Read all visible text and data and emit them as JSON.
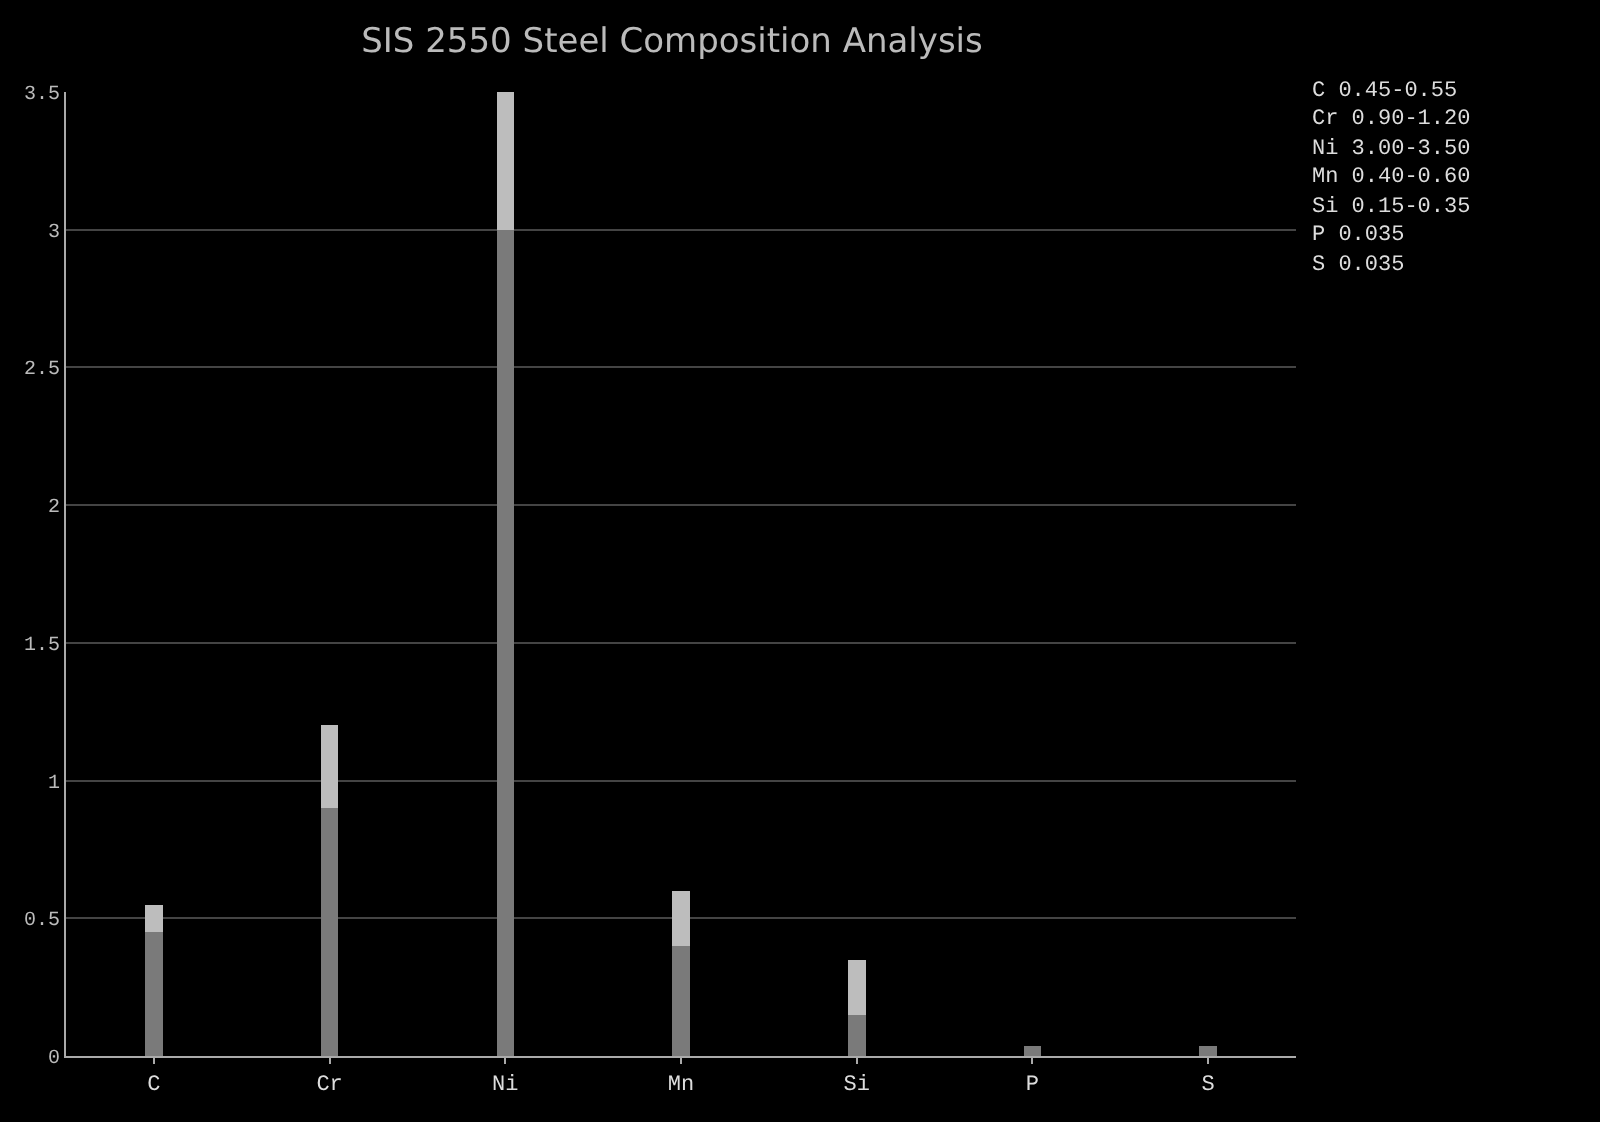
{
  "chart_data": {
    "type": "bar",
    "title": "SIS 2550 Steel Composition Analysis",
    "categories": [
      "C",
      "Cr",
      "Ni",
      "Mn",
      "Si",
      "P",
      "S"
    ],
    "stacked": true,
    "series": [
      {
        "color": "#7a7a7a",
        "values": [
          0.45,
          0.9,
          3.0,
          0.4,
          0.15,
          0.035,
          0.035
        ]
      },
      {
        "color": "#bdbdbd",
        "values": [
          0.1,
          0.3,
          0.5,
          0.2,
          0.2,
          null,
          null
        ]
      }
    ],
    "ylim": [
      0,
      3.5
    ],
    "yticks": [
      0,
      0.5,
      1,
      1.5,
      2,
      2.5,
      3,
      3.5
    ],
    "grid": "y",
    "annotations": [
      "C 0.45-0.55",
      "Cr 0.90-1.20",
      "Ni 3.00-3.50",
      "Mn 0.40-0.60",
      "Si 0.15-0.35",
      "P 0.035",
      "S 0.035"
    ]
  }
}
